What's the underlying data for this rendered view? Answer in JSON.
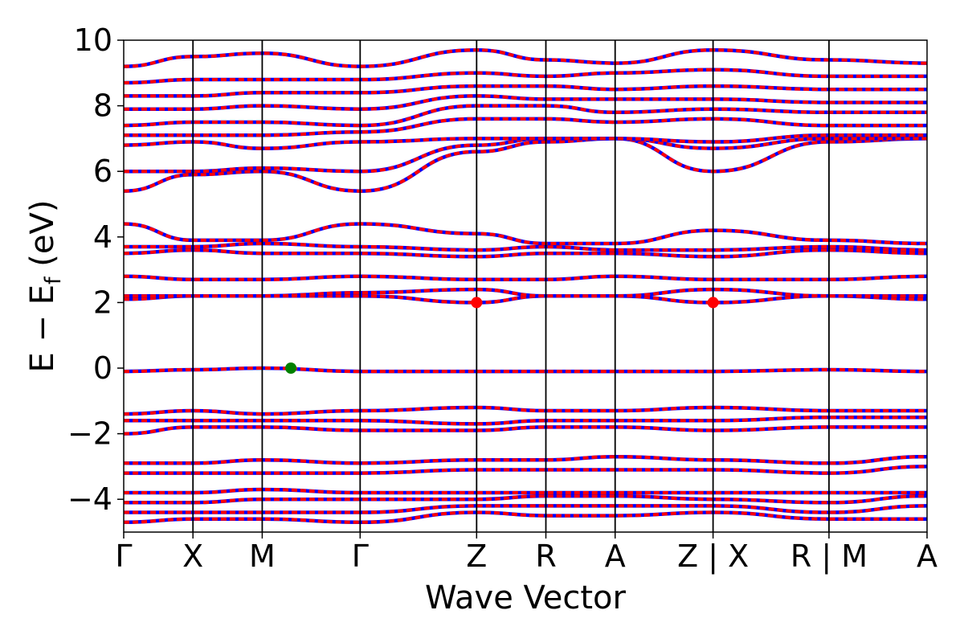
{
  "chart_data": {
    "type": "line",
    "title": "",
    "xlabel": "Wave Vector",
    "ylabel": "E − E_f (eV)",
    "ylabel_parts": {
      "main": "E − E",
      "sub": "f",
      "unit": " (eV)"
    },
    "ylim": [
      -5,
      10
    ],
    "yticks": [
      -4,
      -2,
      0,
      2,
      4,
      6,
      8,
      10
    ],
    "ytick_labels": [
      "−4",
      "−2",
      "0",
      "2",
      "4",
      "6",
      "8",
      "10"
    ],
    "grid": false,
    "kpath": {
      "positions": [
        0,
        0.5,
        1.0,
        1.707,
        2.548,
        3.048,
        3.548,
        4.255,
        5.092,
        5.8
      ],
      "labels": [
        "Γ",
        "X",
        "M",
        "Γ",
        "Z",
        "R",
        "A",
        "Z | X",
        "R | M",
        "A"
      ],
      "range": [
        0,
        5.8
      ]
    },
    "line_colors": {
      "spin_up": "#0000ff",
      "spin_down": "#ff0000"
    },
    "band_energies_at_kpoints": [
      [
        -4.7,
        -4.6,
        -4.6,
        -4.7,
        -4.4,
        -4.5,
        -4.5,
        -4.4,
        -4.6,
        -4.6
      ],
      [
        -4.4,
        -4.4,
        -4.4,
        -4.4,
        -4.2,
        -4.2,
        -4.2,
        -4.2,
        -4.4,
        -4.2
      ],
      [
        -4.1,
        -4.1,
        -4.0,
        -4.0,
        -4.0,
        -3.9,
        -3.9,
        -4.0,
        -4.1,
        -3.9
      ],
      [
        -3.8,
        -3.8,
        -3.7,
        -3.8,
        -3.8,
        -3.8,
        -3.8,
        -3.8,
        -3.8,
        -3.8
      ],
      [
        -3.2,
        -3.2,
        -3.2,
        -3.2,
        -3.1,
        -3.1,
        -3.1,
        -3.1,
        -3.2,
        -3.0
      ],
      [
        -2.9,
        -2.9,
        -2.8,
        -2.9,
        -2.8,
        -2.8,
        -2.7,
        -2.8,
        -2.9,
        -2.7
      ],
      [
        -2.0,
        -1.8,
        -1.8,
        -1.9,
        -1.9,
        -1.8,
        -1.8,
        -1.9,
        -1.8,
        -1.8
      ],
      [
        -1.6,
        -1.6,
        -1.6,
        -1.6,
        -1.7,
        -1.6,
        -1.6,
        -1.6,
        -1.5,
        -1.5
      ],
      [
        -1.4,
        -1.3,
        -1.4,
        -1.3,
        -1.2,
        -1.3,
        -1.3,
        -1.2,
        -1.3,
        -1.3
      ],
      [
        -0.1,
        -0.05,
        0.0,
        -0.1,
        -0.1,
        -0.1,
        -0.1,
        -0.1,
        -0.05,
        -0.1
      ],
      [
        2.1,
        2.2,
        2.2,
        2.2,
        2.0,
        2.2,
        2.2,
        2.0,
        2.2,
        2.1
      ],
      [
        2.2,
        2.2,
        2.2,
        2.3,
        2.4,
        2.2,
        2.2,
        2.4,
        2.2,
        2.2
      ],
      [
        2.8,
        2.7,
        2.7,
        2.8,
        2.7,
        2.7,
        2.8,
        2.7,
        2.7,
        2.8
      ],
      [
        3.5,
        3.6,
        3.5,
        3.5,
        3.4,
        3.5,
        3.5,
        3.4,
        3.6,
        3.5
      ],
      [
        3.7,
        3.7,
        3.8,
        3.7,
        3.6,
        3.7,
        3.6,
        3.6,
        3.7,
        3.6
      ],
      [
        4.4,
        3.9,
        3.9,
        4.4,
        4.1,
        3.8,
        3.8,
        4.2,
        3.9,
        3.8
      ],
      [
        5.4,
        5.9,
        6.0,
        5.4,
        6.6,
        6.9,
        7.0,
        6.0,
        6.9,
        7.0
      ],
      [
        6.0,
        6.0,
        6.1,
        6.0,
        6.8,
        7.0,
        7.0,
        6.7,
        7.0,
        7.0
      ],
      [
        6.8,
        6.9,
        6.7,
        6.9,
        7.0,
        7.0,
        7.0,
        6.9,
        7.1,
        7.1
      ],
      [
        7.1,
        7.1,
        7.1,
        7.2,
        7.6,
        7.6,
        7.5,
        7.6,
        7.4,
        7.4
      ],
      [
        7.4,
        7.5,
        7.5,
        7.4,
        8.0,
        8.0,
        7.8,
        7.9,
        7.8,
        7.8
      ],
      [
        7.9,
        7.9,
        8.0,
        7.9,
        8.3,
        8.2,
        8.2,
        8.2,
        8.1,
        8.1
      ],
      [
        8.3,
        8.3,
        8.4,
        8.4,
        8.6,
        8.6,
        8.5,
        8.6,
        8.5,
        8.5
      ],
      [
        8.7,
        8.8,
        8.8,
        8.8,
        9.0,
        8.9,
        9.0,
        9.1,
        8.9,
        8.9
      ],
      [
        9.2,
        9.5,
        9.6,
        9.2,
        9.7,
        9.4,
        9.3,
        9.7,
        9.4,
        9.3
      ]
    ],
    "marked_points": [
      {
        "k": 1.207,
        "energy": 0.0,
        "color": "#008000"
      },
      {
        "k": 2.548,
        "energy": 2.0,
        "color": "#ff0000"
      },
      {
        "k": 4.255,
        "energy": 2.0,
        "color": "#ff0000"
      }
    ]
  }
}
